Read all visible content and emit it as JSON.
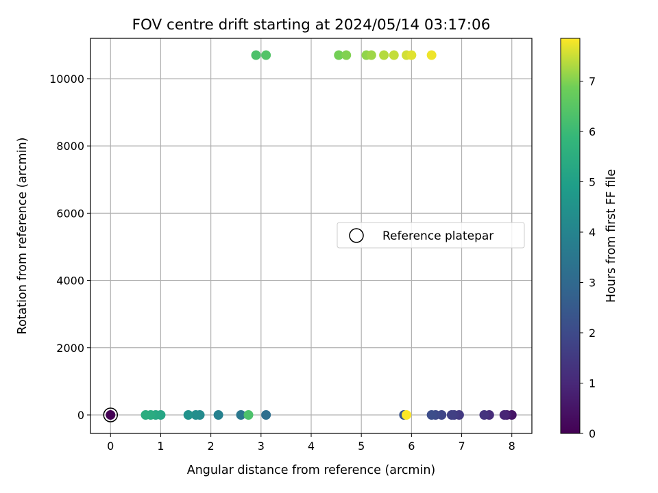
{
  "chart_data": {
    "type": "scatter",
    "title": "FOV centre drift starting at 2024/05/14 03:17:06",
    "xlabel": "Angular distance from reference (arcmin)",
    "ylabel": "Rotation from reference (arcmin)",
    "xlim": [
      -0.4,
      8.4
    ],
    "ylim": [
      -550,
      11200
    ],
    "xticks": [
      0,
      1,
      2,
      3,
      4,
      5,
      6,
      7,
      8
    ],
    "yticks": [
      0,
      2000,
      4000,
      6000,
      8000,
      10000
    ],
    "grid": true,
    "colormap": "viridis",
    "colorbar": {
      "label": "Hours from first FF file",
      "range": [
        0,
        7.85
      ],
      "ticks": [
        0,
        1,
        2,
        3,
        4,
        5,
        6,
        7
      ]
    },
    "legend": {
      "position": "center-right",
      "entries": [
        "Reference platepar"
      ]
    },
    "reference_point": {
      "x": 0,
      "y": 0
    },
    "points": [
      {
        "x": 0.0,
        "y": 0,
        "h": 0.0
      },
      {
        "x": 8.0,
        "y": 0,
        "h": 0.5
      },
      {
        "x": 7.9,
        "y": 0,
        "h": 0.7
      },
      {
        "x": 7.85,
        "y": 0,
        "h": 0.9
      },
      {
        "x": 7.55,
        "y": 0,
        "h": 1.1
      },
      {
        "x": 7.45,
        "y": 0,
        "h": 1.3
      },
      {
        "x": 6.95,
        "y": 0,
        "h": 1.5
      },
      {
        "x": 6.85,
        "y": 0,
        "h": 1.6
      },
      {
        "x": 6.8,
        "y": 0,
        "h": 1.7
      },
      {
        "x": 6.6,
        "y": 0,
        "h": 1.85
      },
      {
        "x": 6.48,
        "y": 0,
        "h": 2.0
      },
      {
        "x": 6.4,
        "y": 0,
        "h": 2.1
      },
      {
        "x": 5.85,
        "y": 0,
        "h": 2.3
      },
      {
        "x": 3.1,
        "y": 0,
        "h": 3.2
      },
      {
        "x": 2.6,
        "y": 0,
        "h": 3.5
      },
      {
        "x": 2.15,
        "y": 0,
        "h": 3.9
      },
      {
        "x": 1.78,
        "y": 0,
        "h": 4.2
      },
      {
        "x": 1.7,
        "y": 0,
        "h": 4.35
      },
      {
        "x": 1.55,
        "y": 0,
        "h": 4.5
      },
      {
        "x": 1.0,
        "y": 0,
        "h": 5.2
      },
      {
        "x": 0.9,
        "y": 0,
        "h": 5.3
      },
      {
        "x": 0.8,
        "y": 0,
        "h": 5.4
      },
      {
        "x": 0.7,
        "y": 0,
        "h": 5.5
      },
      {
        "x": 2.75,
        "y": 0,
        "h": 6.3
      },
      {
        "x": 2.9,
        "y": 10700,
        "h": 6.3
      },
      {
        "x": 3.1,
        "y": 10700,
        "h": 6.4
      },
      {
        "x": 4.55,
        "y": 10700,
        "h": 6.9
      },
      {
        "x": 4.7,
        "y": 10700,
        "h": 7.0
      },
      {
        "x": 5.1,
        "y": 10700,
        "h": 7.1
      },
      {
        "x": 5.2,
        "y": 10700,
        "h": 7.2
      },
      {
        "x": 5.45,
        "y": 10700,
        "h": 7.35
      },
      {
        "x": 5.65,
        "y": 10700,
        "h": 7.45
      },
      {
        "x": 5.9,
        "y": 10700,
        "h": 7.55
      },
      {
        "x": 6.0,
        "y": 10700,
        "h": 7.65
      },
      {
        "x": 6.4,
        "y": 10700,
        "h": 7.75
      },
      {
        "x": 5.9,
        "y": 0,
        "h": 7.85
      }
    ]
  }
}
